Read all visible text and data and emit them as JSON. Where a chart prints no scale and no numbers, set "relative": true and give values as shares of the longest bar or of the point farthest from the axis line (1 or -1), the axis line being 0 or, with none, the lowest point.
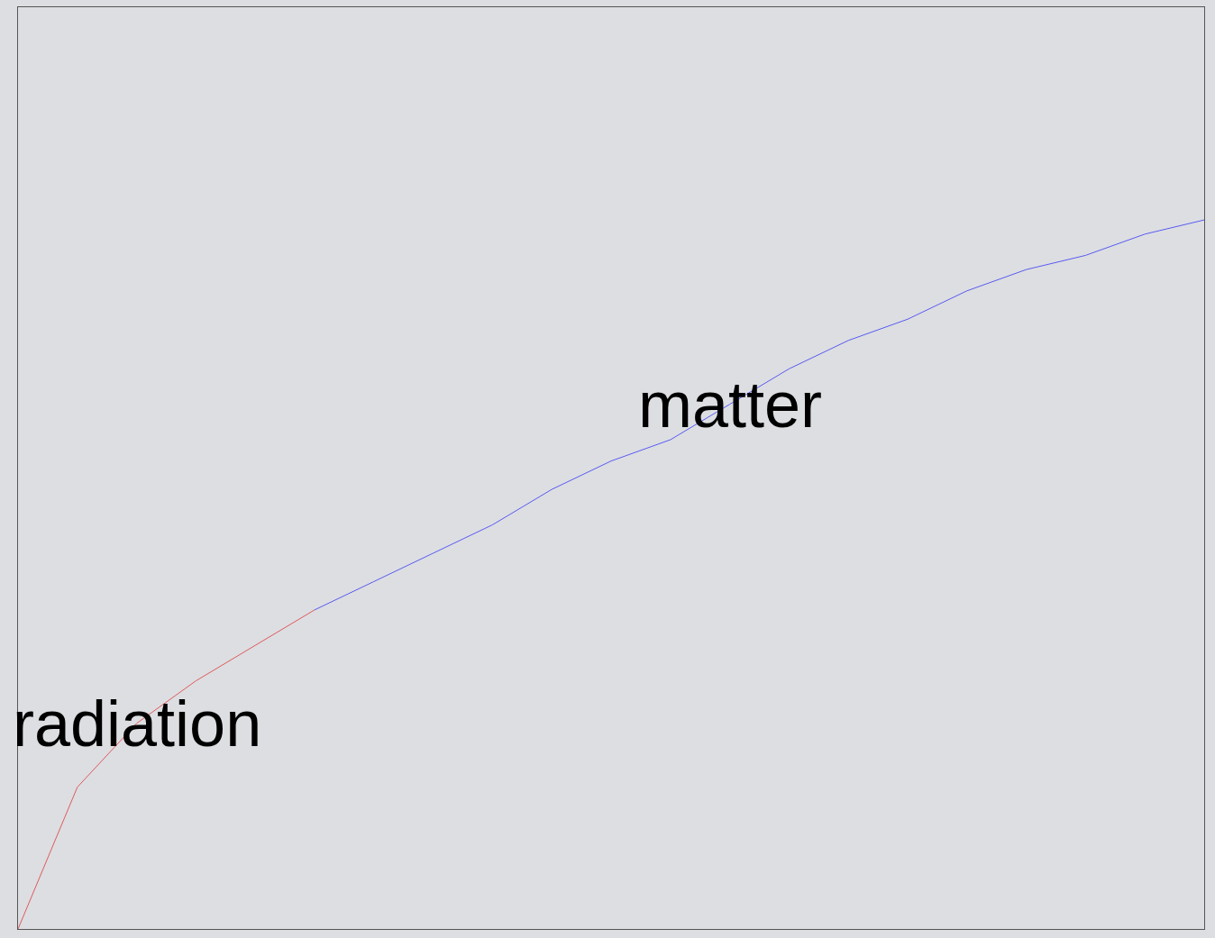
{
  "chart_data": {
    "type": "line",
    "relative": true,
    "grid": false,
    "legend": false,
    "marker": "none",
    "line_style": "solid",
    "categories": [
      null,
      null,
      null,
      null,
      null,
      null,
      null,
      null,
      null,
      null,
      null,
      null,
      null,
      null,
      null,
      null,
      null,
      null,
      null,
      null,
      null
    ],
    "series": [
      {
        "name": "radiation",
        "color": "#e05a5a",
        "values": [
          0,
          0.2,
          0.29,
          0.35,
          0.4,
          0.45,
          null,
          null,
          null,
          null,
          null,
          null,
          null,
          null,
          null,
          null,
          null,
          null,
          null,
          null,
          null
        ]
      },
      {
        "name": "matter",
        "color": "#5a5af0",
        "values": [
          null,
          null,
          null,
          null,
          null,
          0.45,
          0.49,
          0.53,
          0.57,
          0.62,
          0.66,
          0.69,
          0.74,
          0.79,
          0.83,
          0.86,
          0.9,
          0.93,
          0.95,
          0.98,
          1
        ]
      }
    ]
  }
}
